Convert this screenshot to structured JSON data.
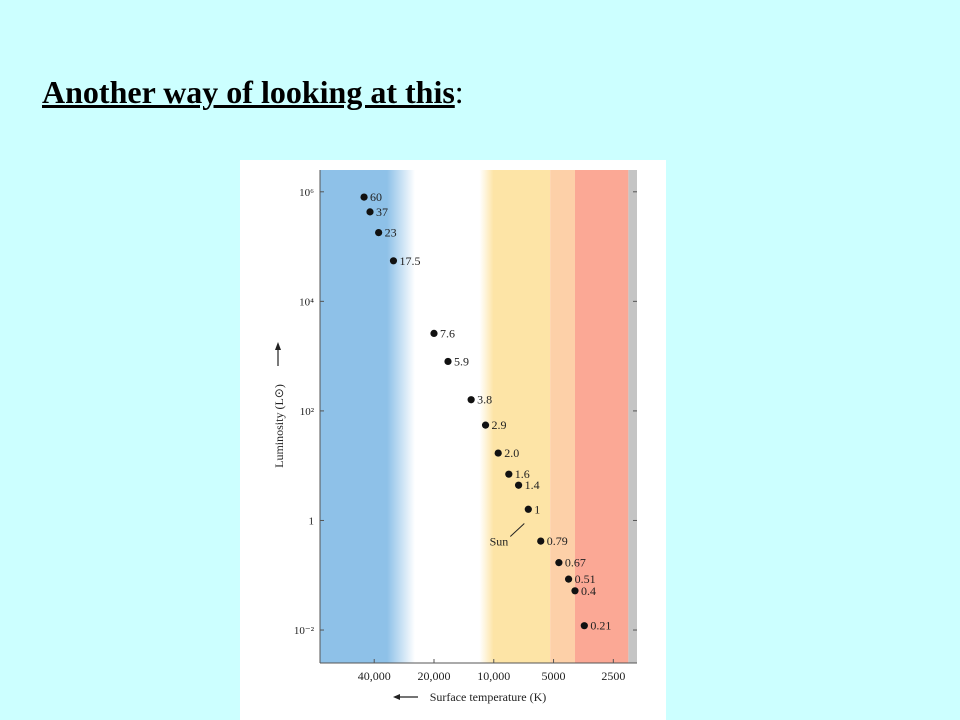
{
  "slide": {
    "title_main": "Another way of looking at this",
    "title_suffix": ":"
  },
  "chart_data": {
    "type": "scatter",
    "xlabel": "Surface temperature (K)",
    "ylabel": "Luminosity (L⊙)",
    "x_scale": "log",
    "x_reversed": true,
    "y_scale": "log",
    "xlim": [
      75000,
      1900
    ],
    "ylim": [
      0.0025,
      2500000
    ],
    "x_ticks": [
      {
        "value": 40000,
        "label": "40,000"
      },
      {
        "value": 20000,
        "label": "20,000"
      },
      {
        "value": 10000,
        "label": "10,000"
      },
      {
        "value": 5000,
        "label": "5000"
      },
      {
        "value": 2500,
        "label": "2500"
      }
    ],
    "y_ticks": [
      {
        "value": 1000000,
        "label": "10⁶"
      },
      {
        "value": 10000,
        "label": "10⁴"
      },
      {
        "value": 100,
        "label": "10²"
      },
      {
        "value": 1,
        "label": "1"
      },
      {
        "value": 0.01,
        "label": "10⁻²"
      }
    ],
    "background_bands": [
      {
        "x_from": 75000,
        "x_to": 30000,
        "color": "#8ec1e8"
      },
      {
        "x_from": 30000,
        "x_to": 10500,
        "color": "#ffffff"
      },
      {
        "x_from": 10500,
        "x_to": 5200,
        "color": "#fde4a6"
      },
      {
        "x_from": 5200,
        "x_to": 3900,
        "color": "#fdd0a8"
      },
      {
        "x_from": 3900,
        "x_to": 2100,
        "color": "#fba895"
      },
      {
        "x_from": 2100,
        "x_to": 1900,
        "color": "#c4c4c4"
      }
    ],
    "points": [
      {
        "x": 45000,
        "y": 800000,
        "label": "60"
      },
      {
        "x": 42000,
        "y": 430000,
        "label": "37"
      },
      {
        "x": 38000,
        "y": 180000,
        "label": "23"
      },
      {
        "x": 32000,
        "y": 55000,
        "label": "17.5"
      },
      {
        "x": 20000,
        "y": 2600,
        "label": "7.6"
      },
      {
        "x": 17000,
        "y": 800,
        "label": "5.9"
      },
      {
        "x": 13000,
        "y": 160,
        "label": "3.8"
      },
      {
        "x": 11000,
        "y": 55,
        "label": "2.9"
      },
      {
        "x": 9500,
        "y": 17,
        "label": "2.0"
      },
      {
        "x": 8400,
        "y": 7,
        "label": "1.6"
      },
      {
        "x": 7500,
        "y": 4.4,
        "label": "1.4"
      },
      {
        "x": 6700,
        "y": 1.6,
        "label": "1"
      },
      {
        "x": 5800,
        "y": 0.42,
        "label": "0.79"
      },
      {
        "x": 4700,
        "y": 0.17,
        "label": "0.67"
      },
      {
        "x": 4200,
        "y": 0.085,
        "label": "0.51"
      },
      {
        "x": 3900,
        "y": 0.052,
        "label": "0.4"
      },
      {
        "x": 3500,
        "y": 0.012,
        "label": "0.21"
      }
    ],
    "annotations": [
      {
        "text": "Sun",
        "x": 6700,
        "y": 1
      }
    ]
  }
}
